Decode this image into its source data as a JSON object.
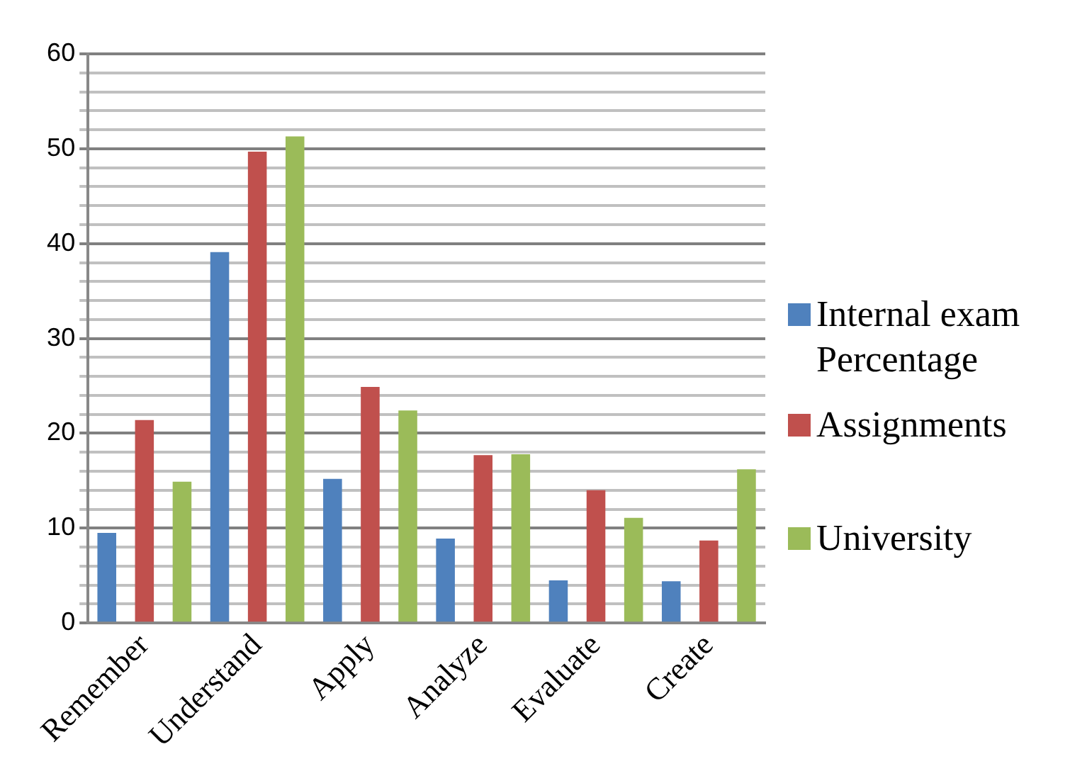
{
  "chart_data": {
    "type": "bar",
    "categories": [
      "Remember",
      "Understand",
      "Apply",
      "Analyze",
      "Evaluate",
      "Create"
    ],
    "series": [
      {
        "name": "Internal exam Percentage",
        "color": "#4f81bd",
        "values": [
          9.5,
          39.1,
          15.2,
          8.9,
          4.5,
          4.4
        ]
      },
      {
        "name": "Assignments",
        "color": "#c0504d",
        "values": [
          21.4,
          49.7,
          24.9,
          17.7,
          14.0,
          8.7
        ]
      },
      {
        "name": "University",
        "color": "#9bbb59",
        "values": [
          14.9,
          51.3,
          22.4,
          17.8,
          11.1,
          16.2
        ]
      }
    ],
    "ylim": [
      0,
      60
    ],
    "yticks": [
      0,
      {
        "value": 2,
        "label": null
      },
      {
        "value": 4,
        "label": null
      },
      {
        "value": 6,
        "label": null
      },
      {
        "value": 8,
        "label": null
      },
      10,
      {
        "value": 12,
        "label": null
      },
      {
        "value": 14,
        "label": null
      },
      {
        "value": 16,
        "label": null
      },
      {
        "value": 18,
        "label": null
      },
      20,
      {
        "value": 22,
        "label": null
      },
      {
        "value": 24,
        "label": null
      },
      {
        "value": 26,
        "label": null
      },
      {
        "value": 28,
        "label": null
      },
      30,
      {
        "value": 32,
        "label": null
      },
      {
        "value": 34,
        "label": null
      },
      {
        "value": 36,
        "label": null
      },
      {
        "value": 38,
        "label": null
      },
      40,
      {
        "value": 42,
        "label": null
      },
      {
        "value": 44,
        "label": null
      },
      {
        "value": 46,
        "label": null
      },
      {
        "value": 48,
        "label": null
      },
      50,
      {
        "value": 52,
        "label": null
      },
      {
        "value": 54,
        "label": null
      },
      {
        "value": 56,
        "label": null
      },
      {
        "value": 58,
        "label": null
      },
      60
    ],
    "grid": "y",
    "legend": "right"
  }
}
